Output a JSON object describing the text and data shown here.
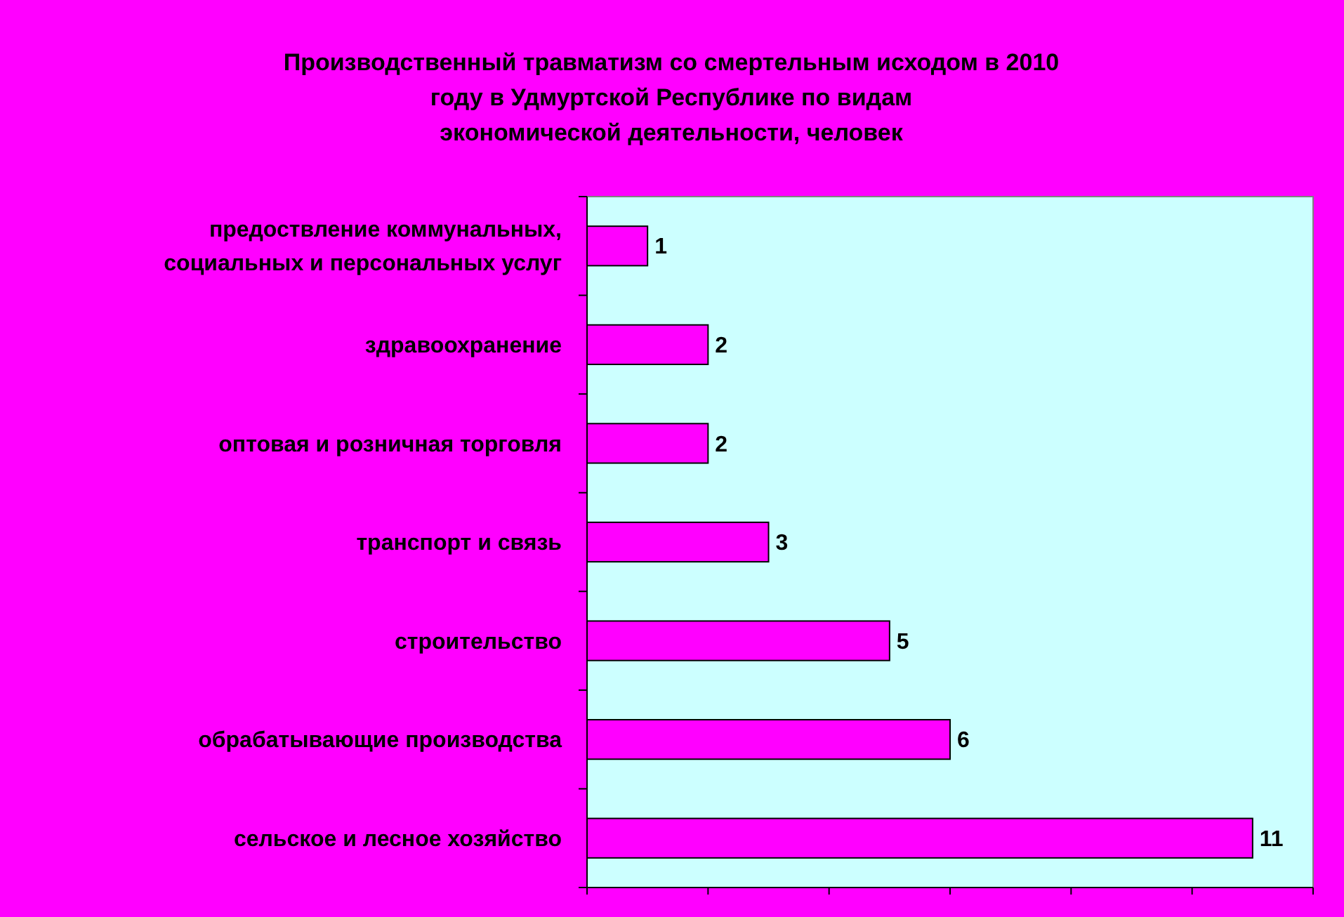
{
  "chart_data": {
    "type": "bar",
    "orientation": "horizontal",
    "title": "Производственный травматизм со смертельным исходом в 2010\nгоду в Удмуртской Республике по видам\nэкономической деятельности, человек",
    "categories": [
      "предоствление коммунальных,\nсоциальных и персональных услуг",
      "здравоохранение",
      "оптовая и розничная торговля",
      "транспорт и связь",
      "строительство",
      "обрабатывающие производства",
      "сельское и лесное хозяйство"
    ],
    "values": [
      1,
      2,
      2,
      3,
      5,
      6,
      11
    ],
    "color": "#ff00ff",
    "data_labels": true,
    "xlim": [
      0,
      12
    ],
    "xticks": [
      {
        "value": 0,
        "label": null
      },
      {
        "value": 2,
        "label": null
      },
      {
        "value": 4,
        "label": null
      },
      {
        "value": 6,
        "label": null
      },
      {
        "value": 8,
        "label": null
      },
      {
        "value": 10,
        "label": null
      },
      {
        "value": 12,
        "label": null
      }
    ],
    "tick_labels": "y",
    "grid": false
  }
}
